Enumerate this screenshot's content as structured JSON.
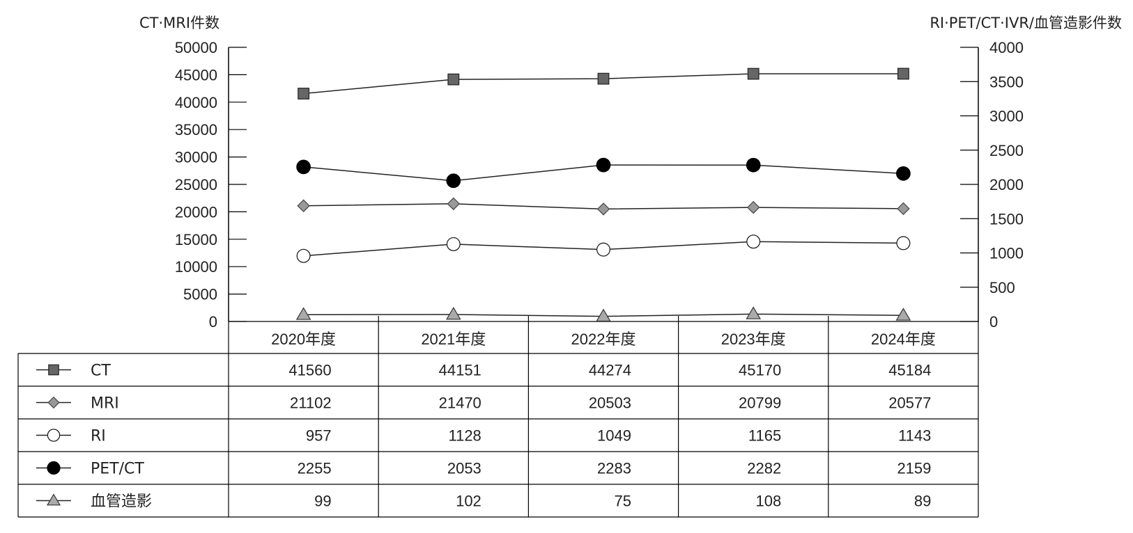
{
  "chart_data": {
    "type": "line",
    "title": "",
    "xlabel": "",
    "ylabel_left": "CT·MRI件数",
    "ylabel_right": "RI·PET/CT·IVR/血管造影件数",
    "categories": [
      "2020年度",
      "2021年度",
      "2022年度",
      "2023年度",
      "2024年度"
    ],
    "y_left": {
      "min": 0,
      "max": 50000,
      "ticks": [
        0,
        5000,
        10000,
        15000,
        20000,
        25000,
        30000,
        35000,
        40000,
        45000,
        50000
      ]
    },
    "y_right": {
      "min": 0,
      "max": 4000,
      "ticks": [
        0,
        500,
        1000,
        1500,
        2000,
        2500,
        3000,
        3500,
        4000
      ]
    },
    "legend_placement": "bottom-table",
    "grid": false,
    "series": [
      {
        "name": "CT",
        "axis": "left",
        "marker": "square",
        "color": "#666666",
        "values": [
          41560,
          44151,
          44274,
          45170,
          45184
        ]
      },
      {
        "name": "MRI",
        "axis": "left",
        "marker": "diamond",
        "color": "#999999",
        "values": [
          21102,
          21470,
          20503,
          20799,
          20577
        ]
      },
      {
        "name": "RI",
        "axis": "right",
        "marker": "circle-open",
        "color": "#ffffff",
        "values": [
          957,
          1128,
          1049,
          1165,
          1143
        ]
      },
      {
        "name": "PET/CT",
        "axis": "right",
        "marker": "circle-filled",
        "color": "#000000",
        "values": [
          2255,
          2053,
          2283,
          2282,
          2159
        ]
      },
      {
        "name": "血管造影",
        "axis": "right",
        "marker": "triangle",
        "color": "#aaaaaa",
        "values": [
          99,
          102,
          75,
          108,
          89
        ]
      }
    ]
  }
}
